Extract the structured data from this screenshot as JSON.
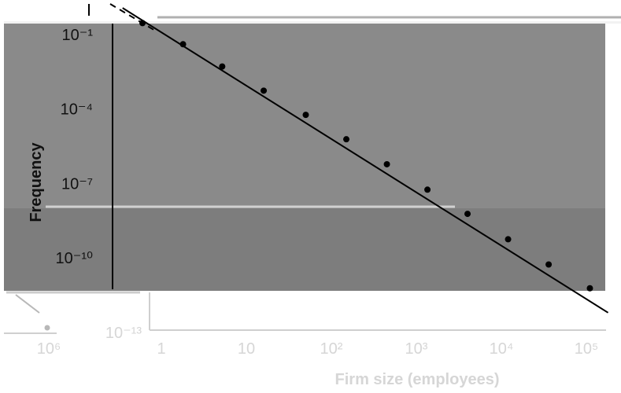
{
  "chart_data": {
    "type": "scatter",
    "xlabel": "Firm size (employees)",
    "ylabel": "Frequency",
    "x_scale": "log",
    "y_scale": "log",
    "x_ticks": [
      {
        "value": 1,
        "label": "1"
      },
      {
        "value": 10,
        "label": "10"
      },
      {
        "value": 100,
        "label": "10²"
      },
      {
        "value": 1000,
        "label": "10³"
      },
      {
        "value": 10000,
        "label": "10⁴"
      },
      {
        "value": 100000,
        "label": "10⁵"
      }
    ],
    "y_ticks": [
      {
        "value": 0.1,
        "label": "10⁻¹"
      },
      {
        "value": 0.0001,
        "label": "10⁻⁴"
      },
      {
        "value": 1e-07,
        "label": "10⁻⁷"
      },
      {
        "value": 1e-10,
        "label": "10⁻¹⁰"
      },
      {
        "value": 1e-13,
        "label": "10⁻¹³"
      }
    ],
    "inset_x_tick": {
      "value": 1000000,
      "label": "10⁶"
    },
    "points": [
      {
        "x": 0.6,
        "y": 0.27
      },
      {
        "x": 1.8,
        "y": 0.038
      },
      {
        "x": 5.2,
        "y": 0.0048
      },
      {
        "x": 16,
        "y": 0.00051
      },
      {
        "x": 50,
        "y": 5.4e-05
      },
      {
        "x": 150,
        "y": 5.6e-06
      },
      {
        "x": 450,
        "y": 5.5e-07
      },
      {
        "x": 1350,
        "y": 5.2e-08
      },
      {
        "x": 4000,
        "y": 5.5e-09
      },
      {
        "x": 12000,
        "y": 5.2e-10
      },
      {
        "x": 36000,
        "y": 5e-11
      },
      {
        "x": 110000,
        "y": 5.5e-12
      }
    ],
    "fit_line": {
      "x": [
        0.35,
        180000
      ],
      "y": [
        1.1,
        5.7e-13
      ]
    }
  }
}
